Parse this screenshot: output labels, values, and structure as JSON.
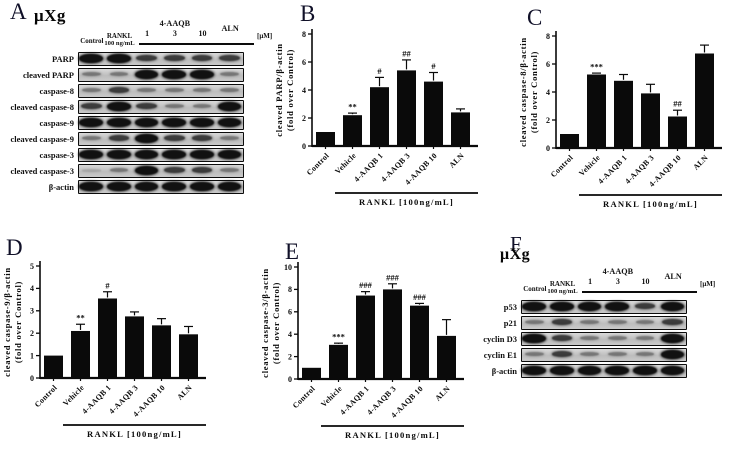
{
  "colors": {
    "ink": "#0a0a0a",
    "bar": "#0a0a0a",
    "strip_bg": "#c9c9c9"
  },
  "panels": {
    "A": {
      "letter": "A",
      "title": "μXg"
    },
    "B": {
      "letter": "B"
    },
    "C": {
      "letter": "C"
    },
    "D": {
      "letter": "D"
    },
    "E": {
      "letter": "E"
    },
    "F": {
      "letter": "F",
      "title": "μXg"
    }
  },
  "lane_header": {
    "control": "Control",
    "rankl_line1": "RANKL",
    "rankl_line2": "100 ng/mL",
    "group": "4-AAQB",
    "doses": [
      "1",
      "3",
      "10"
    ],
    "aln": "ALN",
    "unit": "[μM]"
  },
  "blots": {
    "A": {
      "rows": [
        {
          "label": "PARP",
          "bands": [
            3,
            3,
            2,
            2,
            2,
            2
          ]
        },
        {
          "label": "cleaved PARP",
          "bands": [
            1,
            1,
            3,
            3,
            3,
            1
          ]
        },
        {
          "label": "caspase-8",
          "bands": [
            1,
            2,
            1,
            1,
            1,
            1
          ]
        },
        {
          "label": "cleaved caspase-8",
          "bands": [
            2,
            3,
            2,
            1,
            1,
            3
          ]
        },
        {
          "label": "caspase-9",
          "bands": [
            3,
            3,
            3,
            3,
            3,
            3
          ]
        },
        {
          "label": "cleaved caspase-9",
          "bands": [
            1,
            2,
            3,
            2,
            2,
            1
          ]
        },
        {
          "label": "caspase-3",
          "bands": [
            3,
            3,
            3,
            3,
            3,
            3
          ]
        },
        {
          "label": "cleaved caspase-3",
          "bands": [
            0,
            1,
            3,
            2,
            2,
            1
          ]
        },
        {
          "label": "β-actin",
          "bands": [
            3,
            3,
            3,
            3,
            3,
            3
          ]
        }
      ]
    },
    "F": {
      "rows": [
        {
          "label": "p53",
          "bands": [
            3,
            3,
            3,
            3,
            2,
            3
          ]
        },
        {
          "label": "p21",
          "bands": [
            1,
            2,
            1,
            1,
            1,
            2
          ]
        },
        {
          "label": "cyclin D3",
          "bands": [
            3,
            2,
            1,
            1,
            1,
            3
          ]
        },
        {
          "label": "cyclin E1",
          "bands": [
            1,
            2,
            1,
            1,
            1,
            3
          ]
        },
        {
          "label": "β-actin",
          "bands": [
            3,
            3,
            3,
            3,
            3,
            3
          ]
        }
      ]
    }
  },
  "chart_data": [
    {
      "panel": "B",
      "type": "bar",
      "categories": [
        "Control",
        "Vehicle",
        "4-AAQB 1",
        "4-AAQB 3",
        "4-AAQB 10",
        "ALN"
      ],
      "values": [
        1.0,
        2.2,
        4.2,
        5.4,
        4.6,
        2.4
      ],
      "errors": [
        0,
        0.15,
        0.7,
        0.75,
        0.65,
        0.25
      ],
      "annotations": [
        "",
        "**",
        "#",
        "##",
        "#",
        ""
      ],
      "ylabel": [
        "cleaved PARP/β-actin",
        "(fold over Control)"
      ],
      "ylim": [
        0,
        8
      ],
      "ytick_step": 2,
      "xlabel": "RANKL [100ng/mL]",
      "xlabel_span": [
        1,
        5
      ],
      "grid": false,
      "legend": "none"
    },
    {
      "panel": "C",
      "type": "bar",
      "categories": [
        "Control",
        "Vehicle",
        "4-AAQB 1",
        "4-AAQB 3",
        "4-AAQB 10",
        "ALN"
      ],
      "values": [
        1.0,
        5.25,
        4.8,
        3.9,
        2.25,
        6.75
      ],
      "errors": [
        0,
        0.1,
        0.45,
        0.65,
        0.45,
        0.6
      ],
      "annotations": [
        "",
        "***",
        "",
        "",
        "##",
        ""
      ],
      "ylabel": [
        "cleaved caspase-8/β-actin",
        "(fold over Control)"
      ],
      "ylim": [
        0,
        8
      ],
      "ytick_step": 2,
      "xlabel": "RANKL [100ng/mL]",
      "xlabel_span": [
        1,
        5
      ],
      "grid": false,
      "legend": "none"
    },
    {
      "panel": "D",
      "type": "bar",
      "categories": [
        "Control",
        "Vehicle",
        "4-AAQB 1",
        "4-AAQB 3",
        "4-AAQB 10",
        "ALN"
      ],
      "values": [
        1.0,
        2.1,
        3.55,
        2.75,
        2.35,
        1.95
      ],
      "errors": [
        0,
        0.3,
        0.3,
        0.2,
        0.3,
        0.35
      ],
      "annotations": [
        "",
        "**",
        "#",
        "",
        "",
        ""
      ],
      "ylabel": [
        "cleaved caspase-9/β-actin",
        "(fold over Control)"
      ],
      "ylim": [
        0,
        5
      ],
      "ytick_step": 1,
      "xlabel": "RANKL [100ng/mL]",
      "xlabel_span": [
        1,
        5
      ],
      "grid": false,
      "legend": "none"
    },
    {
      "panel": "E",
      "type": "bar",
      "categories": [
        "Control",
        "Vehicle",
        "4-AAQB 1",
        "4-AAQB 3",
        "4-AAQB 10",
        "ALN"
      ],
      "values": [
        1.0,
        3.05,
        7.45,
        8.0,
        6.55,
        3.85
      ],
      "errors": [
        0,
        0.15,
        0.35,
        0.5,
        0.2,
        1.45
      ],
      "annotations": [
        "",
        "***",
        "###",
        "###",
        "###",
        ""
      ],
      "ylabel": [
        "cleaved caspase-3/β-actin",
        "(fold over Control)"
      ],
      "ylim": [
        0,
        10
      ],
      "ytick_step": 2,
      "xlabel": "RANKL [100ng/mL]",
      "xlabel_span": [
        1,
        5
      ],
      "grid": false,
      "legend": "none"
    }
  ]
}
